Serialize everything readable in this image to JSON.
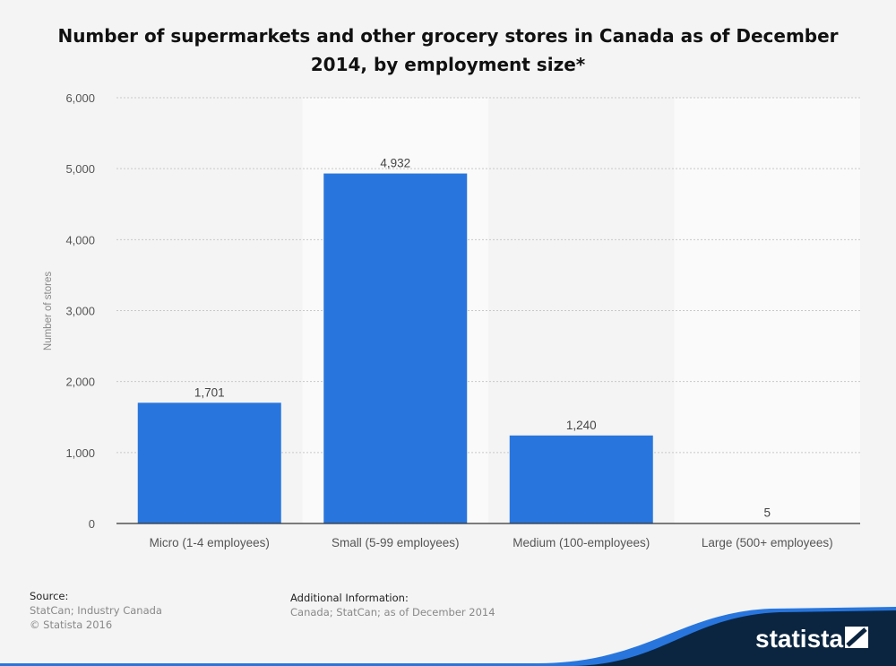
{
  "chart_data": {
    "type": "bar",
    "title": "Number of supermarkets and other grocery stores in Canada as of December 2014, by employment size*",
    "categories": [
      "Micro (1-4 employees)",
      "Small (5-99 employees)",
      "Medium (100-employees)",
      "Large (500+ employees)"
    ],
    "values": [
      1701,
      4932,
      1240,
      5
    ],
    "value_labels": [
      "1,701",
      "4,932",
      "1,240",
      "5"
    ],
    "xlabel": "",
    "ylabel": "Number of stores",
    "ylim": [
      0,
      6000
    ],
    "yticks": [
      0,
      1000,
      2000,
      3000,
      4000,
      5000,
      6000
    ],
    "ytick_labels": [
      "0",
      "1,000",
      "2,000",
      "3,000",
      "4,000",
      "5,000",
      "6,000"
    ],
    "grid": true,
    "bar_color": "#2876dd"
  },
  "footer": {
    "source_label": "Source:",
    "source_lines": [
      "StatCan; Industry Canada",
      "© Statista 2016"
    ],
    "info_label": "Additional Information:",
    "info_text": "Canada; StatCan; as of December 2014",
    "logo": "statista"
  }
}
